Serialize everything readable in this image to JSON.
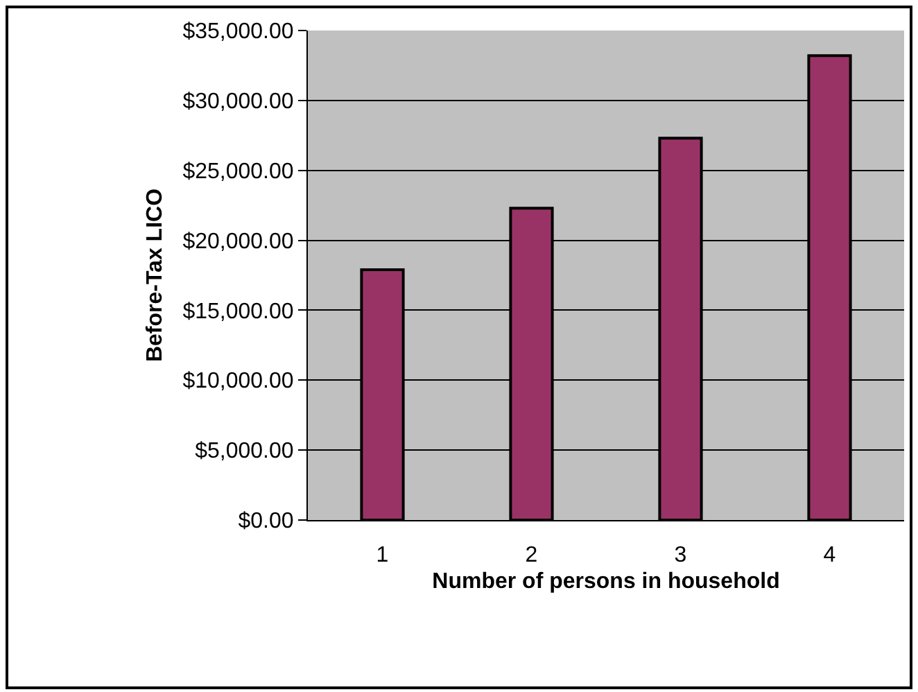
{
  "chart_data": {
    "type": "bar",
    "xlabel": "Number of persons in household",
    "ylabel": "Before-Tax LICO",
    "categories": [
      "1",
      "2",
      "3",
      "4"
    ],
    "series": [
      {
        "color": "#993366",
        "values": [
          17900,
          22300,
          27300,
          33200
        ]
      }
    ],
    "ylim": [
      0,
      35000
    ],
    "yticks": [
      {
        "value": 0,
        "label": "$0.00"
      },
      {
        "value": 5000,
        "label": "$5,000.00"
      },
      {
        "value": 10000,
        "label": "$10,000.00"
      },
      {
        "value": 15000,
        "label": "$15,000.00"
      },
      {
        "value": 20000,
        "label": "$20,000.00"
      },
      {
        "value": 25000,
        "label": "$25,000.00"
      },
      {
        "value": 30000,
        "label": "$30,000.00"
      },
      {
        "value": 35000,
        "label": "$35,000.00"
      }
    ],
    "grid": "y"
  }
}
